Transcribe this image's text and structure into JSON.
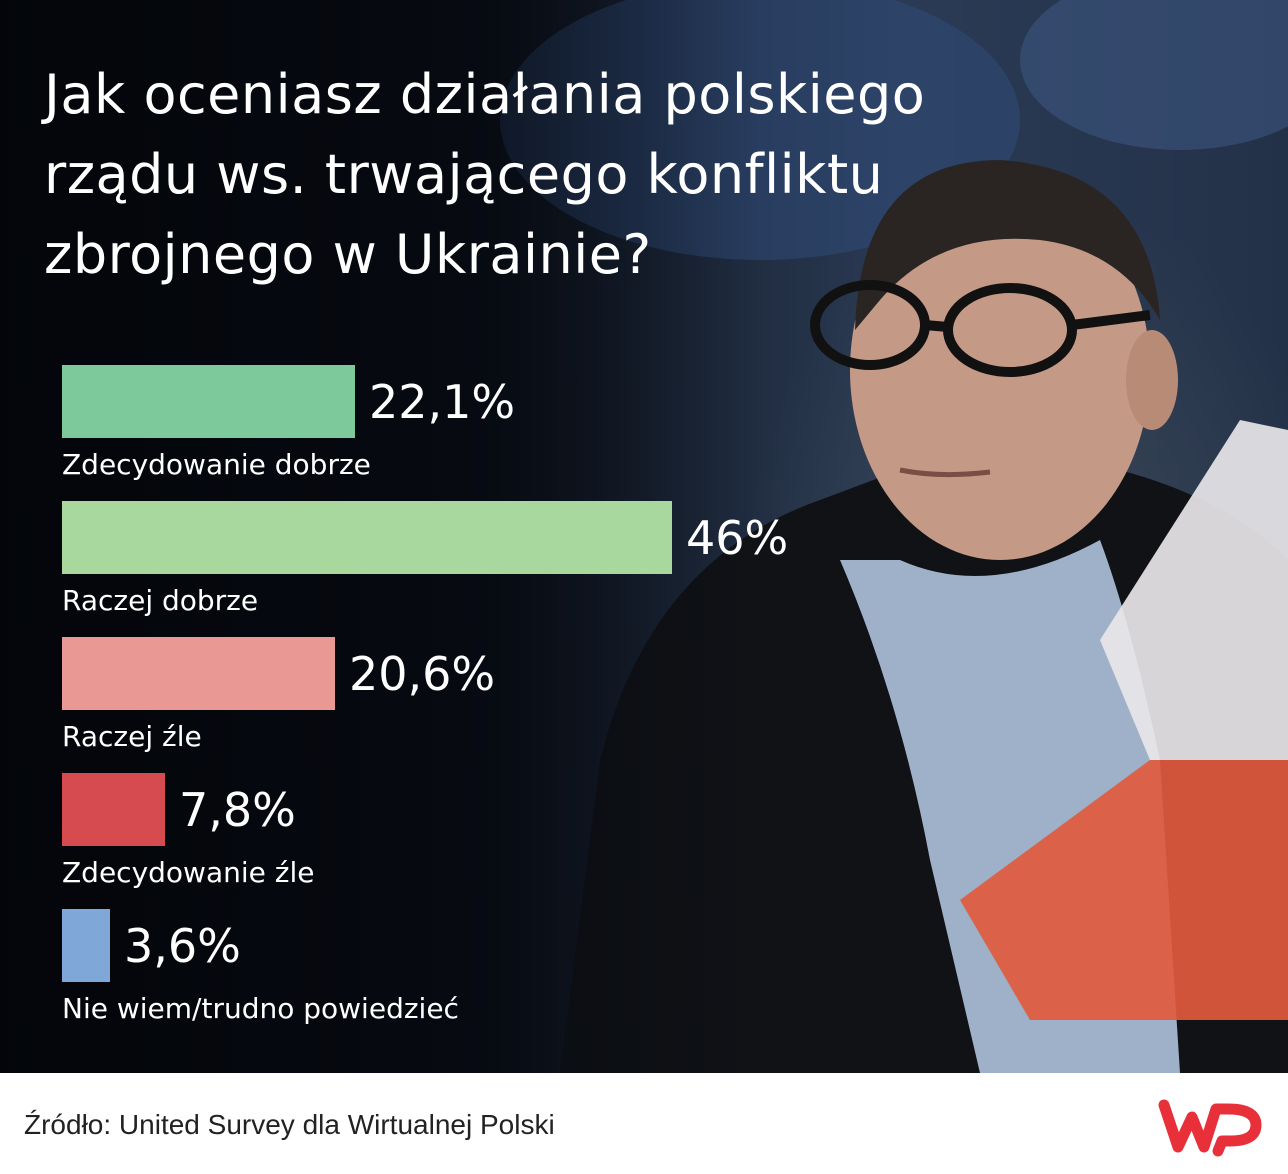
{
  "title": "Jak oceniasz działania polskiego rządu ws. trwającego konfliktu zbrojnego w Ukrainie?",
  "footer": {
    "source": "Źródło: United Survey dla Wirtualnej Polski",
    "logo_text": "WP"
  },
  "colors": {
    "strongly_good": "#7ec99c",
    "rather_good": "#a8d89e",
    "rather_bad": "#e99894",
    "strongly_bad": "#d64b4f",
    "dont_know": "#7fa7d8",
    "logo": "#e8303a"
  },
  "chart_data": {
    "type": "bar",
    "orientation": "horizontal",
    "title": "Jak oceniasz działania polskiego rządu ws. trwającego konfliktu zbrojnego w Ukrainie?",
    "categories": [
      "Zdecydowanie dobrze",
      "Raczej dobrze",
      "Raczej źle",
      "Zdecydowanie źle",
      "Nie wiem/trudno powiedzieć"
    ],
    "values": [
      22.1,
      46,
      20.6,
      7.8,
      3.6
    ],
    "value_labels": [
      "22,1%",
      "46%",
      "20,6%",
      "7,8%",
      "3,6%"
    ],
    "bar_colors": [
      "#7ec99c",
      "#a8d89e",
      "#e99894",
      "#d64b4f",
      "#7fa7d8"
    ],
    "unit": "%",
    "xlim": [
      0,
      46
    ],
    "grid": false,
    "legend": "none"
  }
}
